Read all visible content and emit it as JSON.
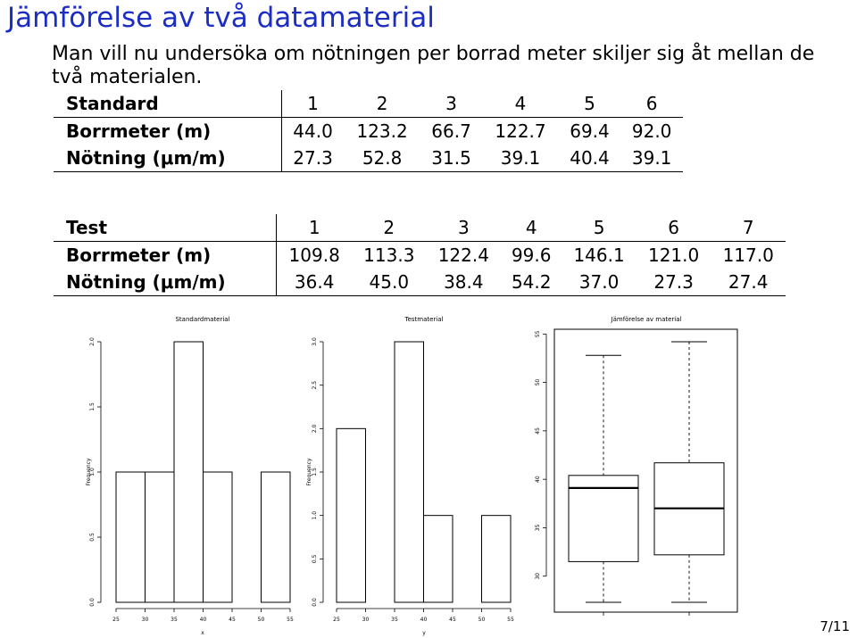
{
  "title": "Jämförelse av två datamaterial",
  "intro": "Man vill nu undersöka om nötningen per borrad meter skiljer sig åt mellan de två materialen.",
  "standard_table": {
    "header_label": "Standard",
    "columns": [
      "1",
      "2",
      "3",
      "4",
      "5",
      "6"
    ],
    "rows": [
      {
        "label": "Borrmeter (m)",
        "values": [
          "44.0",
          "123.2",
          "66.7",
          "122.7",
          "69.4",
          "92.0"
        ]
      },
      {
        "label": "Nötning (μm/m)",
        "values": [
          "27.3",
          "52.8",
          "31.5",
          "39.1",
          "40.4",
          "39.1"
        ]
      }
    ]
  },
  "test_table": {
    "header_label": "Test",
    "columns": [
      "1",
      "2",
      "3",
      "4",
      "5",
      "6",
      "7"
    ],
    "rows": [
      {
        "label": "Borrmeter (m)",
        "values": [
          "109.8",
          "113.3",
          "122.4",
          "99.6",
          "146.1",
          "121.0",
          "117.0"
        ]
      },
      {
        "label": "Nötning (μm/m)",
        "values": [
          "36.4",
          "45.0",
          "38.4",
          "54.2",
          "37.0",
          "27.3",
          "27.4"
        ]
      }
    ]
  },
  "chart_data": [
    {
      "type": "bar",
      "subtype": "histogram",
      "title": "Standardmaterial",
      "xlabel": "x",
      "ylabel": "Frequency",
      "bin_edges": [
        25,
        30,
        35,
        40,
        45,
        50,
        55
      ],
      "values": [
        1,
        1,
        2,
        1,
        0,
        1
      ],
      "xticks": [
        "25",
        "30",
        "35",
        "40",
        "45",
        "50",
        "55"
      ],
      "yticks": [
        "0.0",
        "0.5",
        "1.0",
        "1.5",
        "2.0"
      ],
      "xlim": [
        25,
        55
      ],
      "ylim": [
        0,
        2
      ]
    },
    {
      "type": "bar",
      "subtype": "histogram",
      "title": "Testmaterial",
      "xlabel": "y",
      "ylabel": "Frequency",
      "bin_edges": [
        25,
        30,
        35,
        40,
        45,
        50,
        55
      ],
      "values": [
        2,
        0,
        3,
        1,
        0,
        1
      ],
      "xticks": [
        "25",
        "30",
        "35",
        "40",
        "45",
        "50",
        "55"
      ],
      "yticks": [
        "0.0",
        "0.5",
        "1.0",
        "1.5",
        "2.0",
        "2.5",
        "3.0"
      ],
      "xlim": [
        25,
        55
      ],
      "ylim": [
        0,
        3
      ]
    },
    {
      "type": "boxplot",
      "title": "Jämförelse av material",
      "yticks": [
        "30",
        "35",
        "40",
        "45",
        "50",
        "55"
      ],
      "ylim": [
        27.3,
        54.2
      ],
      "boxes": [
        {
          "min": 27.3,
          "q1": 31.5,
          "median": 39.1,
          "q3": 40.4,
          "max": 52.8
        },
        {
          "min": 27.3,
          "q1": 32.2,
          "median": 37.0,
          "q3": 41.7,
          "max": 54.2
        }
      ]
    }
  ],
  "page_number": "7/11",
  "colors": {
    "title": "#1b2dc3"
  }
}
